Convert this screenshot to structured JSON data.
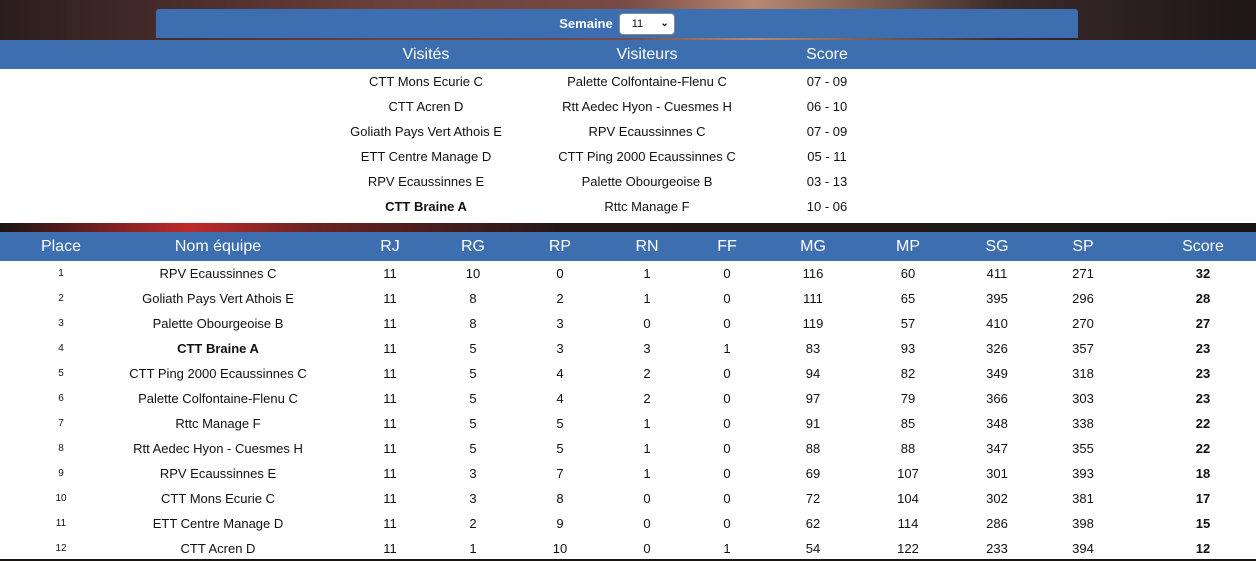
{
  "week": {
    "label": "Semaine",
    "selected": "11"
  },
  "matches": {
    "headers": {
      "home": "Visités",
      "away": "Visiteurs",
      "score": "Score"
    },
    "rows": [
      {
        "home": "CTT Mons Ecurie C",
        "away": "Palette Colfontaine-Flenu C",
        "score": "07 - 09"
      },
      {
        "home": "CTT Acren D",
        "away": "Rtt Aedec Hyon - Cuesmes H",
        "score": "06 - 10"
      },
      {
        "home": "Goliath Pays Vert Athois E",
        "away": "RPV Ecaussinnes C",
        "score": "07 - 09"
      },
      {
        "home": "ETT Centre Manage D",
        "away": "CTT Ping 2000 Ecaussinnes C",
        "score": "05 - 11"
      },
      {
        "home": "RPV Ecaussinnes E",
        "away": "Palette Obourgeoise B",
        "score": "03 - 13"
      },
      {
        "home": "CTT Braine A",
        "away": "Rttc Manage F",
        "score": "10 - 06"
      }
    ]
  },
  "standings": {
    "headers": [
      "Place",
      "Nom équipe",
      "RJ",
      "RG",
      "RP",
      "RN",
      "FF",
      "MG",
      "MP",
      "SG",
      "SP",
      "Score"
    ],
    "rows": [
      [
        "1",
        "RPV Ecaussinnes C",
        "11",
        "10",
        "0",
        "1",
        "0",
        "116",
        "60",
        "411",
        "271",
        "32"
      ],
      [
        "2",
        "Goliath Pays Vert Athois E",
        "11",
        "8",
        "2",
        "1",
        "0",
        "111",
        "65",
        "395",
        "296",
        "28"
      ],
      [
        "3",
        "Palette Obourgeoise B",
        "11",
        "8",
        "3",
        "0",
        "0",
        "119",
        "57",
        "410",
        "270",
        "27"
      ],
      [
        "4",
        "CTT Braine A",
        "11",
        "5",
        "3",
        "3",
        "1",
        "83",
        "93",
        "326",
        "357",
        "23"
      ],
      [
        "5",
        "CTT Ping 2000 Ecaussinnes C",
        "11",
        "5",
        "4",
        "2",
        "0",
        "94",
        "82",
        "349",
        "318",
        "23"
      ],
      [
        "6",
        "Palette Colfontaine-Flenu C",
        "11",
        "5",
        "4",
        "2",
        "0",
        "97",
        "79",
        "366",
        "303",
        "23"
      ],
      [
        "7",
        "Rttc Manage F",
        "11",
        "5",
        "5",
        "1",
        "0",
        "91",
        "85",
        "348",
        "338",
        "22"
      ],
      [
        "8",
        "Rtt Aedec Hyon - Cuesmes H",
        "11",
        "5",
        "5",
        "1",
        "0",
        "88",
        "88",
        "347",
        "355",
        "22"
      ],
      [
        "9",
        "RPV Ecaussinnes E",
        "11",
        "3",
        "7",
        "1",
        "0",
        "69",
        "107",
        "301",
        "393",
        "18"
      ],
      [
        "10",
        "CTT Mons Ecurie C",
        "11",
        "3",
        "8",
        "0",
        "0",
        "72",
        "104",
        "302",
        "381",
        "17"
      ],
      [
        "11",
        "ETT Centre Manage D",
        "11",
        "2",
        "9",
        "0",
        "0",
        "62",
        "114",
        "286",
        "398",
        "15"
      ],
      [
        "12",
        "CTT Acren D",
        "11",
        "1",
        "10",
        "0",
        "1",
        "54",
        "122",
        "233",
        "394",
        "12"
      ]
    ]
  },
  "highlight_team": "CTT Braine A"
}
